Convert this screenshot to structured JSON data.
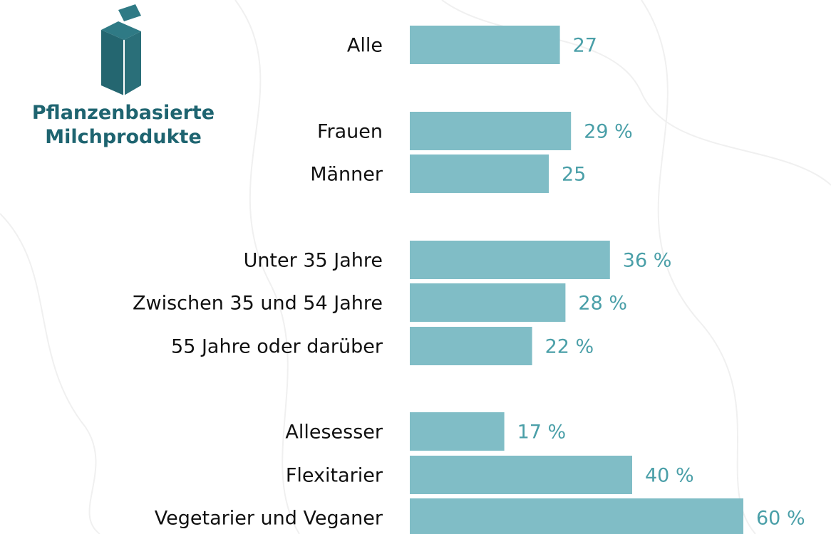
{
  "chart_data": {
    "type": "bar",
    "orientation": "horizontal",
    "title": "Pflanzenbasierte Milchprodukte",
    "categories": [
      "Alle",
      "Frauen",
      "Männer",
      "Unter 35 Jahre",
      "Zwischen 35 und 54 Jahre",
      "55 Jahre oder darüber",
      "Allesesser",
      "Flexitarier",
      "Vegetarier und Veganer"
    ],
    "values": [
      27,
      29,
      25,
      36,
      28,
      22,
      17,
      40,
      60
    ],
    "value_labels": [
      "27",
      "29 %",
      "25",
      "36 %",
      "28 %",
      "22 %",
      "17 %",
      "40 %",
      "60 %"
    ],
    "color": "#80bdc6"
  }
}
